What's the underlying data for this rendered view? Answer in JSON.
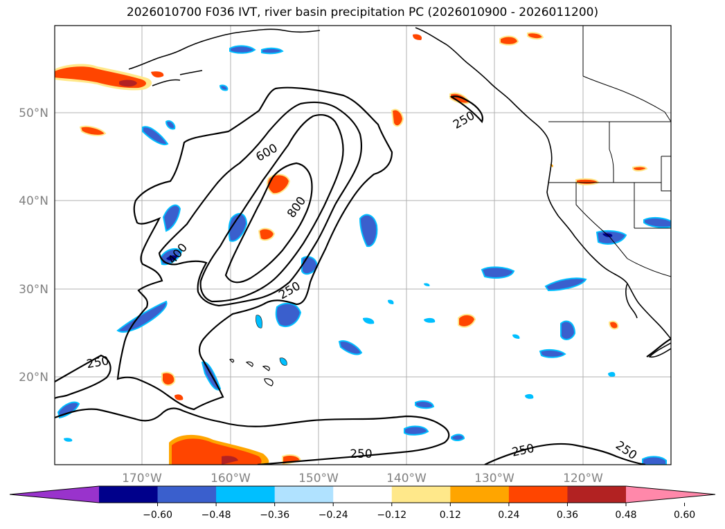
{
  "title": "2026010700 F036 IVT, river basin precipitation PC (2026010900 - 2026011200)",
  "map": {
    "projection": "plate-carree",
    "lon_range": [
      -180,
      -110
    ],
    "lat_range": [
      10,
      60
    ],
    "gridlines": true,
    "lat_labels": [
      "50°N",
      "40°N",
      "30°N",
      "20°N"
    ],
    "lat_values": [
      50,
      40,
      30,
      20
    ],
    "lon_labels": [
      "170°W",
      "160°W",
      "150°W",
      "140°W",
      "130°W",
      "120°W"
    ],
    "lon_values": [
      -170,
      -160,
      -150,
      -140,
      -130,
      -120
    ]
  },
  "ivt_contours": {
    "color": "#000000",
    "levels": [
      250,
      400,
      600,
      800
    ],
    "labels": [
      {
        "text": "600",
        "lon": -155.9,
        "lat": 45.5
      },
      {
        "text": "800",
        "lon": -152.5,
        "lat": 39.3
      },
      {
        "text": "400",
        "lon": -166.0,
        "lat": 34.0
      },
      {
        "text": "250",
        "lon": -153.3,
        "lat": 29.8
      },
      {
        "text": "250",
        "lon": -133.5,
        "lat": 49.2
      },
      {
        "text": "250",
        "lon": -175.1,
        "lat": 21.6
      },
      {
        "text": "250",
        "lon": -145.2,
        "lat": 11.2
      },
      {
        "text": "250",
        "lon": -126.8,
        "lat": 11.6
      },
      {
        "text": "250",
        "lon": -115.1,
        "lat": 11.6
      }
    ]
  },
  "colorbar": {
    "ticks": [
      "−0.60",
      "−0.48",
      "−0.36",
      "−0.24",
      "−0.12",
      "0.12",
      "0.24",
      "0.36",
      "0.48",
      "0.60"
    ],
    "colors": [
      "#9933cc",
      "#00008b",
      "#3a5fcd",
      "#00bfff",
      "#b0e2ff",
      "#ffffff",
      "#ffe88a",
      "#ffa500",
      "#ff4500",
      "#b22222",
      "#ff88aa"
    ],
    "extend": "both"
  }
}
